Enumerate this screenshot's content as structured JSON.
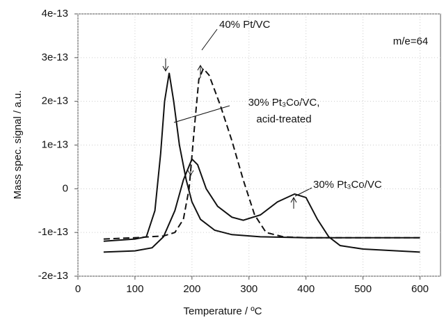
{
  "chart_data": {
    "type": "line",
    "x_label": "Temperature / ºC",
    "y_label": "Mass spec. signal / a.u.",
    "xlim": [
      0,
      636
    ],
    "xticks": [
      0,
      100,
      200,
      300,
      400,
      500,
      600
    ],
    "ylim": [
      -2e-13,
      4e-13
    ],
    "yticks": [
      -2e-13,
      -1e-13,
      0,
      1e-13,
      2e-13,
      3e-13,
      4e-13
    ],
    "grid": true,
    "annotations": [
      "m/e=64",
      "40% Pt/VC",
      "30% Pt₃Co/VC,",
      "acid-treated",
      "30% Pt₃Co/VC"
    ],
    "series": [
      {
        "name": "40% Pt/VC",
        "color": "#111111",
        "linestyle": "dashed",
        "x": [
          45,
          100,
          150,
          170,
          185,
          195,
          205,
          212,
          220,
          230,
          250,
          270,
          290,
          310,
          330,
          360,
          400,
          500,
          600
        ],
        "values": [
          -1.15e-13,
          -1.12e-13,
          -1.08e-13,
          -1e-13,
          -7e-14,
          0,
          1.5e-13,
          2.5e-13,
          2.75e-13,
          2.6e-13,
          1.9e-13,
          1.1e-13,
          2e-14,
          -6e-14,
          -1e-13,
          -1.1e-13,
          -1.12e-13,
          -1.12e-13,
          -1.12e-13
        ]
      },
      {
        "name": "30% Pt₃Co/VC, acid-treated",
        "color": "#111111",
        "linestyle": "solid",
        "x": [
          45,
          100,
          120,
          135,
          145,
          152,
          160,
          168,
          178,
          190,
          200,
          215,
          240,
          270,
          320,
          400,
          600
        ],
        "values": [
          -1.2e-13,
          -1.15e-13,
          -1.1e-13,
          -5e-14,
          8e-14,
          2e-13,
          2.65e-13,
          2e-13,
          1e-13,
          2e-14,
          -3e-14,
          -7e-14,
          -9.5e-14,
          -1.05e-13,
          -1.1e-13,
          -1.12e-13,
          -1.12e-13
        ]
      },
      {
        "name": "30% Pt₃Co/VC",
        "color": "#111111",
        "linestyle": "solid",
        "x": [
          45,
          100,
          130,
          150,
          170,
          185,
          200,
          210,
          225,
          245,
          270,
          290,
          320,
          350,
          380,
          400,
          420,
          440,
          460,
          500,
          600
        ],
        "values": [
          -1.45e-13,
          -1.42e-13,
          -1.35e-13,
          -1.1e-13,
          -5e-14,
          2e-14,
          6.8e-14,
          5.5e-14,
          0,
          -4e-14,
          -6.5e-14,
          -7.2e-14,
          -6e-14,
          -3e-14,
          -1.2e-14,
          -2e-14,
          -7e-14,
          -1.1e-13,
          -1.3e-13,
          -1.38e-13,
          -1.45e-13
        ]
      }
    ]
  }
}
